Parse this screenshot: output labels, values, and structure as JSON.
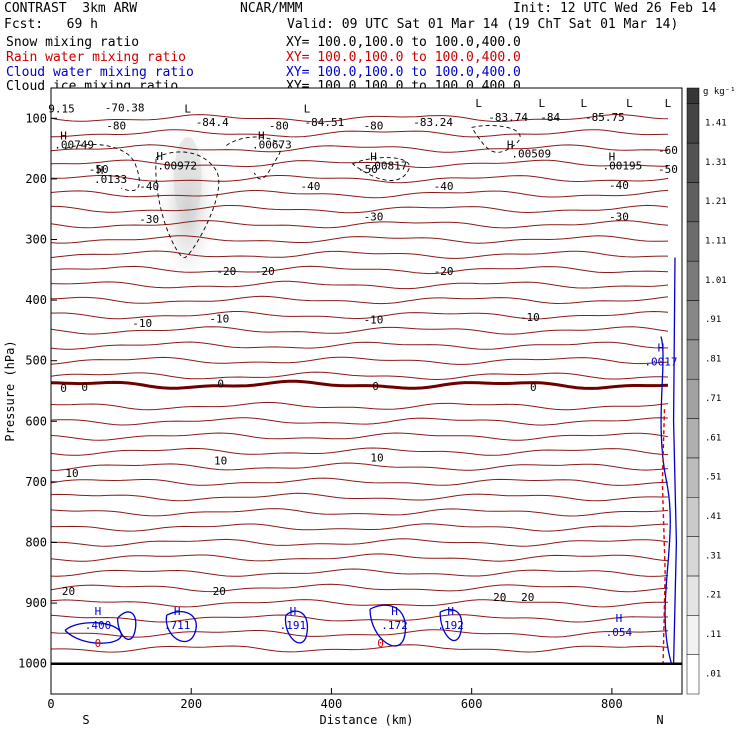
{
  "header": {
    "model": "CONTRAST  3km ARW",
    "center": "NCAR/MMM",
    "init": "Init: 12 UTC Wed 26 Feb 14",
    "fcst": "Fcst:   69 h",
    "valid": "Valid: 09 UTC Sat 01 Mar 14 (19 ChT Sat 01 Mar 14)"
  },
  "fields": [
    {
      "name": "Snow mixing ratio",
      "xy": "XY= 100.0,100.0 to 100.0,400.0",
      "color": "#000000"
    },
    {
      "name": "Rain water mixing ratio",
      "xy": "XY= 100.0,100.0 to 100.0,400.0",
      "color": "#cc0000"
    },
    {
      "name": "Cloud water mixing ratio",
      "xy": "XY= 100.0,100.0 to 100.0,400.0",
      "color": "#0000cc"
    },
    {
      "name": "Cloud ice mixing ratio",
      "xy": "XY= 100.0,100.0 to 100.0,400.0",
      "color": "#000000"
    }
  ],
  "colors": {
    "temperature": "#8b1a1a",
    "zero_isotherm": "#6e0000",
    "cloud_water": "#0000cc",
    "rain": "#dd0000",
    "snow_shade": "#cfcfcf"
  },
  "chart_data": {
    "type": "cross-section",
    "xlabel": "Distance (km)",
    "ylabel": "Pressure (hPa)",
    "xlim": [
      0,
      900
    ],
    "ylim": [
      1050,
      50
    ],
    "xticks": [
      0,
      200,
      400,
      600,
      800
    ],
    "yticks": [
      100,
      200,
      300,
      400,
      500,
      600,
      700,
      800,
      900,
      1000
    ],
    "end_labels": {
      "left": "S",
      "right": "N"
    },
    "colorbar": {
      "unit": "g kg⁻¹",
      "ticks": [
        ".01",
        ".11",
        ".21",
        ".31",
        ".41",
        ".51",
        ".61",
        ".71",
        ".81",
        ".91",
        "1.01",
        "1.11",
        "1.21",
        "1.31",
        "1.41"
      ]
    },
    "isotherm_labels": [
      {
        "text": "-80",
        "x": 93,
        "p": 112
      },
      {
        "text": "-84.4",
        "x": 230,
        "p": 106
      },
      {
        "text": "-80",
        "x": 325,
        "p": 112
      },
      {
        "text": "-84.51",
        "x": 390,
        "p": 106
      },
      {
        "text": "-80",
        "x": 460,
        "p": 112
      },
      {
        "text": "-83.24",
        "x": 545,
        "p": 106
      },
      {
        "text": "-83.74",
        "x": 652,
        "p": 98
      },
      {
        "text": "-84",
        "x": 712,
        "p": 98
      },
      {
        "text": "-85.75",
        "x": 790,
        "p": 98
      },
      {
        "text": "-70.38",
        "x": 105,
        "p": 82
      },
      {
        "text": "-60",
        "x": 880,
        "p": 152
      },
      {
        "text": "-50",
        "x": 68,
        "p": 184
      },
      {
        "text": "-50",
        "x": 452,
        "p": 184
      },
      {
        "text": "-50",
        "x": 880,
        "p": 184
      },
      {
        "text": "-40",
        "x": 140,
        "p": 212
      },
      {
        "text": "-40",
        "x": 370,
        "p": 212
      },
      {
        "text": "-40",
        "x": 560,
        "p": 212
      },
      {
        "text": "-40",
        "x": 810,
        "p": 210
      },
      {
        "text": "-30",
        "x": 140,
        "p": 266
      },
      {
        "text": "-30",
        "x": 460,
        "p": 262
      },
      {
        "text": "-30",
        "x": 810,
        "p": 262
      },
      {
        "text": "-20",
        "x": 250,
        "p": 352
      },
      {
        "text": "-20",
        "x": 305,
        "p": 352
      },
      {
        "text": "-20",
        "x": 560,
        "p": 352
      },
      {
        "text": "-10",
        "x": 130,
        "p": 438
      },
      {
        "text": "-10",
        "x": 240,
        "p": 430
      },
      {
        "text": "-10",
        "x": 460,
        "p": 432
      },
      {
        "text": "-10",
        "x": 683,
        "p": 428
      },
      {
        "text": "0",
        "x": 18,
        "p": 545
      },
      {
        "text": "0",
        "x": 48,
        "p": 543
      },
      {
        "text": "0",
        "x": 242,
        "p": 538
      },
      {
        "text": "0",
        "x": 463,
        "p": 542
      },
      {
        "text": "0",
        "x": 688,
        "p": 543
      },
      {
        "text": "10",
        "x": 30,
        "p": 685
      },
      {
        "text": "10",
        "x": 242,
        "p": 665
      },
      {
        "text": "10",
        "x": 465,
        "p": 660
      },
      {
        "text": "20",
        "x": 25,
        "p": 880
      },
      {
        "text": "20",
        "x": 240,
        "p": 880
      },
      {
        "text": "20",
        "x": 640,
        "p": 890
      },
      {
        "text": "20",
        "x": 680,
        "p": 890
      }
    ],
    "annotations": [
      {
        "kind": "L",
        "text": "L",
        "x": 195,
        "p": 84
      },
      {
        "kind": "L",
        "text": "L",
        "x": 365,
        "p": 84
      },
      {
        "kind": "L",
        "text": "L",
        "x": 610,
        "p": 75
      },
      {
        "kind": "L",
        "text": "L",
        "x": 700,
        "p": 75
      },
      {
        "kind": "L",
        "text": "L",
        "x": 760,
        "p": 75
      },
      {
        "kind": "L",
        "text": "L",
        "x": 825,
        "p": 75
      },
      {
        "kind": "L",
        "text": "L",
        "x": 880,
        "p": 75
      },
      {
        "kind": "H",
        "text": "H",
        "x": 18,
        "p": 128
      },
      {
        "kind": "H",
        "text": "H",
        "x": 155,
        "p": 162
      },
      {
        "kind": "H",
        "text": "H",
        "x": 300,
        "p": 128
      },
      {
        "kind": "H",
        "text": "H",
        "x": 460,
        "p": 163
      },
      {
        "kind": "H",
        "text": "H",
        "x": 655,
        "p": 143
      },
      {
        "kind": "H",
        "text": "H",
        "x": 800,
        "p": 163
      },
      {
        "kind": "H",
        "text": "H",
        "x": 70,
        "p": 185
      },
      {
        "kind": "val",
        "text": ".00749",
        "x": 33,
        "p": 143
      },
      {
        "kind": "val",
        "text": ".00972",
        "x": 180,
        "p": 178
      },
      {
        "kind": "val",
        "text": ".00673",
        "x": 315,
        "p": 143
      },
      {
        "kind": "val",
        "text": ".00817",
        "x": 480,
        "p": 178
      },
      {
        "kind": "val",
        "text": ".00509",
        "x": 685,
        "p": 158
      },
      {
        "kind": "val",
        "text": ".00195",
        "x": 815,
        "p": 178
      },
      {
        "kind": "val",
        "text": ".0133",
        "x": 85,
        "p": 200
      },
      {
        "kind": "val",
        "text": "9.15",
        "x": 15,
        "p": 84
      }
    ],
    "cloud_water_labels": [
      {
        "h": "H",
        "text": ".400",
        "x": 67,
        "p": 933
      },
      {
        "h": "H",
        "text": ".711",
        "x": 180,
        "p": 933
      },
      {
        "h": "H",
        "text": ".191",
        "x": 345,
        "p": 933
      },
      {
        "h": "H",
        "text": ".172",
        "x": 490,
        "p": 933
      },
      {
        "h": "H",
        "text": ".192",
        "x": 570,
        "p": 933
      },
      {
        "h": "H",
        "text": ".054",
        "x": 810,
        "p": 944
      },
      {
        "h": "H",
        "text": ".0017",
        "x": 870,
        "p": 498
      }
    ],
    "rain_labels": [
      {
        "text": "0",
        "x": 67,
        "p": 966
      },
      {
        "text": "0",
        "x": 470,
        "p": 966
      }
    ]
  }
}
